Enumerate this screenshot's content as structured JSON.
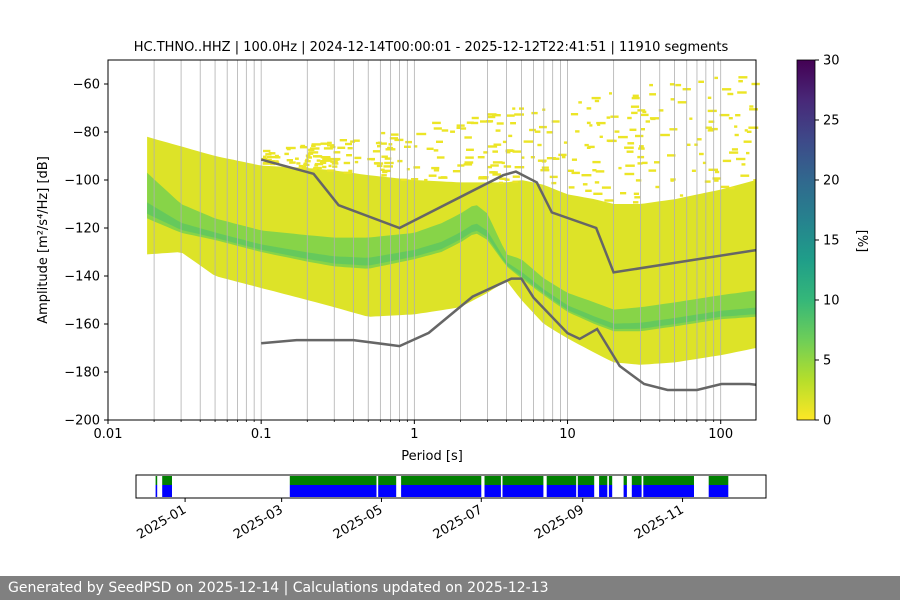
{
  "chart_data": [
    {
      "type": "heatmap",
      "title": "HC.THNO..HHZ | 100.0Hz | 2024-12-14T00:00:01 - 2025-12-12T22:41:51 | 11910 segments",
      "xlabel": "Period [s]",
      "ylabel": "Amplitude [m²/s⁴/Hz] [dB]",
      "xscale": "log",
      "xlim": [
        0.01,
        170
      ],
      "ylim": [
        -200,
        -50
      ],
      "x_ticks": [
        {
          "v": 0.01,
          "label": "0.01"
        },
        {
          "v": 0.1,
          "label": "0.1"
        },
        {
          "v": 1,
          "label": "1"
        },
        {
          "v": 10,
          "label": "10"
        },
        {
          "v": 100,
          "label": "100"
        }
      ],
      "y_ticks": [
        {
          "v": -200,
          "label": "−200"
        },
        {
          "v": -180,
          "label": "−180"
        },
        {
          "v": -160,
          "label": "−160"
        },
        {
          "v": -140,
          "label": "−140"
        },
        {
          "v": -120,
          "label": "−120"
        },
        {
          "v": -100,
          "label": "−100"
        },
        {
          "v": -80,
          "label": "−80"
        },
        {
          "v": -60,
          "label": "−60"
        }
      ],
      "colorbar": {
        "label": "[%]",
        "range": [
          0,
          30
        ],
        "ticks": [
          {
            "v": 0,
            "label": "0"
          },
          {
            "v": 5,
            "label": "5"
          },
          {
            "v": 10,
            "label": "10"
          },
          {
            "v": 15,
            "label": "15"
          },
          {
            "v": 20,
            "label": "20"
          },
          {
            "v": 25,
            "label": "25"
          },
          {
            "v": 30,
            "label": "30"
          }
        ],
        "colors": [
          "#fde725",
          "#b5de2b",
          "#6ece58",
          "#35b779",
          "#1f9e89",
          "#26828e",
          "#31688e",
          "#3e4989",
          "#482878",
          "#440154"
        ]
      },
      "density_bands": [
        {
          "name": "envelope",
          "x": [
            0.018,
            0.03,
            0.05,
            0.1,
            0.2,
            0.3,
            0.5,
            1,
            2,
            3,
            4,
            5,
            7,
            10,
            15,
            20,
            30,
            50,
            100,
            170
          ],
          "lower": [
            -131,
            -130,
            -140,
            -145,
            -150,
            -153,
            -157,
            -156,
            -153,
            -147,
            -142,
            -150,
            -160,
            -166,
            -172,
            -176,
            -177,
            -176,
            -173,
            -170
          ],
          "upper": [
            -82,
            -86,
            -90,
            -94,
            -95,
            -96,
            -98,
            -100,
            -101,
            -101,
            -101,
            -100,
            -102,
            -106,
            -108,
            -110,
            -110,
            -108,
            -104,
            -100
          ]
        },
        {
          "name": "mode",
          "x": [
            0.018,
            0.03,
            0.05,
            0.1,
            0.2,
            0.3,
            0.5,
            1,
            1.5,
            2,
            2.5,
            3,
            4,
            5,
            7,
            10,
            15,
            20,
            30,
            50,
            100,
            170
          ],
          "lower": [
            -116,
            -122,
            -125,
            -130,
            -134,
            -136,
            -137,
            -133,
            -130,
            -126,
            -122,
            -125,
            -136,
            -141,
            -148,
            -155,
            -160,
            -163,
            -163,
            -161,
            -158,
            -157
          ],
          "upper": [
            -97,
            -110,
            -116,
            -121,
            -123,
            -124,
            -124,
            -122,
            -118,
            -114,
            -110,
            -114,
            -131,
            -133,
            -141,
            -147,
            -151,
            -154,
            -153,
            -151,
            -148,
            -146
          ]
        }
      ],
      "sparse_region": {
        "x_from": 0.1,
        "x_to": 165,
        "y_from": -98,
        "y_to": -52
      },
      "reference_curves": [
        {
          "name": "NHNM",
          "x": [
            0.1,
            0.22,
            0.32,
            0.8,
            3.8,
            4.6,
            6.3,
            7.9,
            15.4,
            20,
            354
          ],
          "y": [
            -91.5,
            -97.4,
            -110.5,
            -120,
            -98,
            -96.5,
            -101,
            -113.5,
            -120,
            -138.5,
            -126
          ]
        },
        {
          "name": "NLNM",
          "x": [
            0.1,
            0.17,
            0.4,
            0.8,
            1.24,
            2.4,
            4.3,
            5,
            6,
            10,
            12,
            15.6,
            21.9,
            31.6,
            45,
            70,
            101,
            154,
            328
          ],
          "y": [
            -168,
            -166.7,
            -166.7,
            -169.2,
            -163.7,
            -148.6,
            -141.1,
            -141.1,
            -149,
            -163.8,
            -166.2,
            -162.1,
            -177.5,
            -185,
            -187.5,
            -187.5,
            -185,
            -185,
            -187.5
          ]
        }
      ]
    },
    {
      "type": "timeline",
      "date_ticks": [
        "2025-01",
        "2025-03",
        "2025-05",
        "2025-07",
        "2025-09",
        "2025-11"
      ],
      "x_start": "2024-12-14",
      "x_end": "2025-12-12",
      "color_available": "#0000ff",
      "color_processed": "#008000",
      "segments": [
        {
          "from": "2024-12-14",
          "to": "2024-12-15"
        },
        {
          "from": "2024-12-18",
          "to": "2024-12-24"
        },
        {
          "from": "2025-03-06",
          "to": "2025-04-28"
        },
        {
          "from": "2025-04-29",
          "to": "2025-05-10"
        },
        {
          "from": "2025-05-13",
          "to": "2025-07-01"
        },
        {
          "from": "2025-07-03",
          "to": "2025-07-13"
        },
        {
          "from": "2025-07-14",
          "to": "2025-08-08"
        },
        {
          "from": "2025-08-10",
          "to": "2025-08-28"
        },
        {
          "from": "2025-08-29",
          "to": "2025-09-08"
        },
        {
          "from": "2025-09-11",
          "to": "2025-09-16"
        },
        {
          "from": "2025-09-17",
          "to": "2025-09-19"
        },
        {
          "from": "2025-09-26",
          "to": "2025-09-28"
        },
        {
          "from": "2025-10-01",
          "to": "2025-10-07"
        },
        {
          "from": "2025-10-08",
          "to": "2025-11-08"
        },
        {
          "from": "2025-11-17",
          "to": "2025-11-29"
        }
      ]
    }
  ],
  "footer": {
    "text": "Generated by SeedPSD on 2025-12-14 | Calculations updated on 2025-12-13"
  }
}
